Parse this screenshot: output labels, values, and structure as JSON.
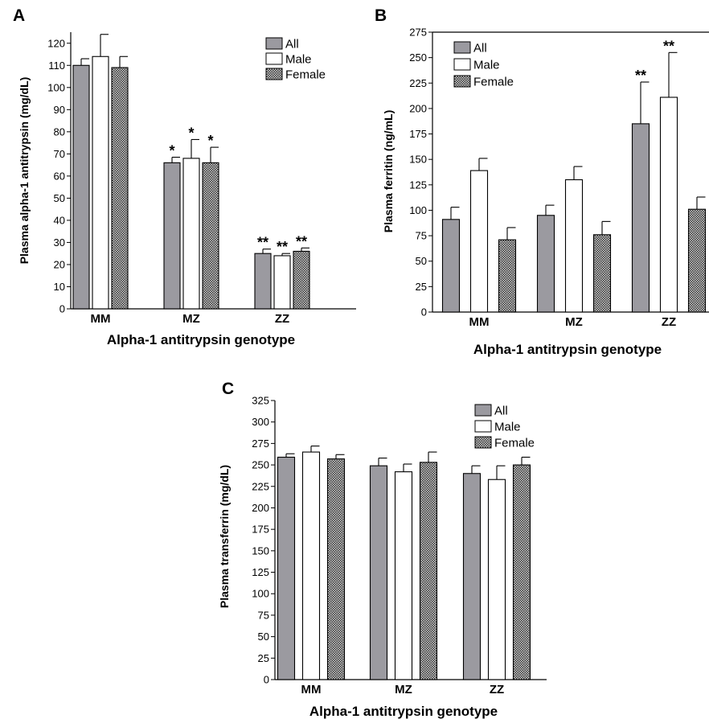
{
  "chart_data": [
    {
      "panel": "A",
      "type": "bar",
      "ylabel": "Plasma alpha-1 antitrypsin (mg/dL)",
      "xlabel": "Alpha-1 antitrypsin genotype",
      "categories": [
        "MM",
        "MZ",
        "ZZ"
      ],
      "ylim": [
        0,
        125
      ],
      "yticks": [
        0,
        10,
        20,
        30,
        40,
        50,
        60,
        70,
        80,
        90,
        100,
        110,
        120
      ],
      "legend": {
        "placement": "top-right"
      },
      "series": [
        {
          "name": "All",
          "fill": "gray",
          "values": [
            110,
            66,
            25
          ],
          "errors": [
            3,
            2.5,
            2
          ],
          "labels": [
            "",
            "*",
            "**"
          ]
        },
        {
          "name": "Male",
          "fill": "white",
          "values": [
            114,
            68,
            24
          ],
          "errors": [
            10,
            8.5,
            1
          ],
          "labels": [
            "",
            "*",
            "**"
          ]
        },
        {
          "name": "Female",
          "fill": "checker",
          "values": [
            109,
            66,
            26
          ],
          "errors": [
            5,
            7,
            1.5
          ],
          "labels": [
            "",
            "*",
            "**"
          ]
        }
      ]
    },
    {
      "panel": "B",
      "type": "bar",
      "ylabel": "Plasma ferritin (ng/mL)",
      "xlabel": "Alpha-1 antitrypsin genotype",
      "categories": [
        "MM",
        "MZ",
        "ZZ"
      ],
      "ylim": [
        0,
        275
      ],
      "yticks": [
        0,
        25,
        50,
        75,
        100,
        125,
        150,
        175,
        200,
        225,
        250,
        275
      ],
      "legend": {
        "placement": "top-left"
      },
      "series": [
        {
          "name": "All",
          "fill": "gray",
          "values": [
            91,
            95,
            185
          ],
          "errors": [
            12,
            10,
            41
          ],
          "labels": [
            "",
            "",
            "**"
          ]
        },
        {
          "name": "Male",
          "fill": "white",
          "values": [
            139,
            130,
            211
          ],
          "errors": [
            12,
            13,
            44
          ],
          "labels": [
            "",
            "",
            "**"
          ]
        },
        {
          "name": "Female",
          "fill": "checker",
          "values": [
            71,
            76,
            101
          ],
          "errors": [
            12,
            13,
            12
          ],
          "labels": [
            "",
            "",
            ""
          ]
        }
      ]
    },
    {
      "panel": "C",
      "type": "bar",
      "ylabel": "Plasma transferrin (mg/dL)",
      "xlabel": "Alpha-1 antitrypsin genotype",
      "categories": [
        "MM",
        "MZ",
        "ZZ"
      ],
      "ylim": [
        0,
        325
      ],
      "yticks": [
        0,
        25,
        50,
        75,
        100,
        125,
        150,
        175,
        200,
        225,
        250,
        275,
        300,
        325
      ],
      "legend": {
        "placement": "top-right"
      },
      "series": [
        {
          "name": "All",
          "fill": "gray",
          "values": [
            259,
            249,
            240
          ],
          "errors": [
            4,
            9,
            9
          ],
          "labels": [
            "",
            "",
            ""
          ]
        },
        {
          "name": "Male",
          "fill": "white",
          "values": [
            265,
            242,
            233
          ],
          "errors": [
            7,
            9,
            16
          ],
          "labels": [
            "",
            "",
            ""
          ]
        },
        {
          "name": "Female",
          "fill": "checker",
          "values": [
            257,
            253,
            250
          ],
          "errors": [
            5,
            12,
            9
          ],
          "labels": [
            "",
            "",
            ""
          ]
        }
      ]
    }
  ],
  "colors": {
    "gray": "#9b9aa0",
    "white": "#ffffff",
    "checker_dark": "#3a3a3a",
    "checker_light": "#c8c8c8",
    "axis": "#000000"
  }
}
